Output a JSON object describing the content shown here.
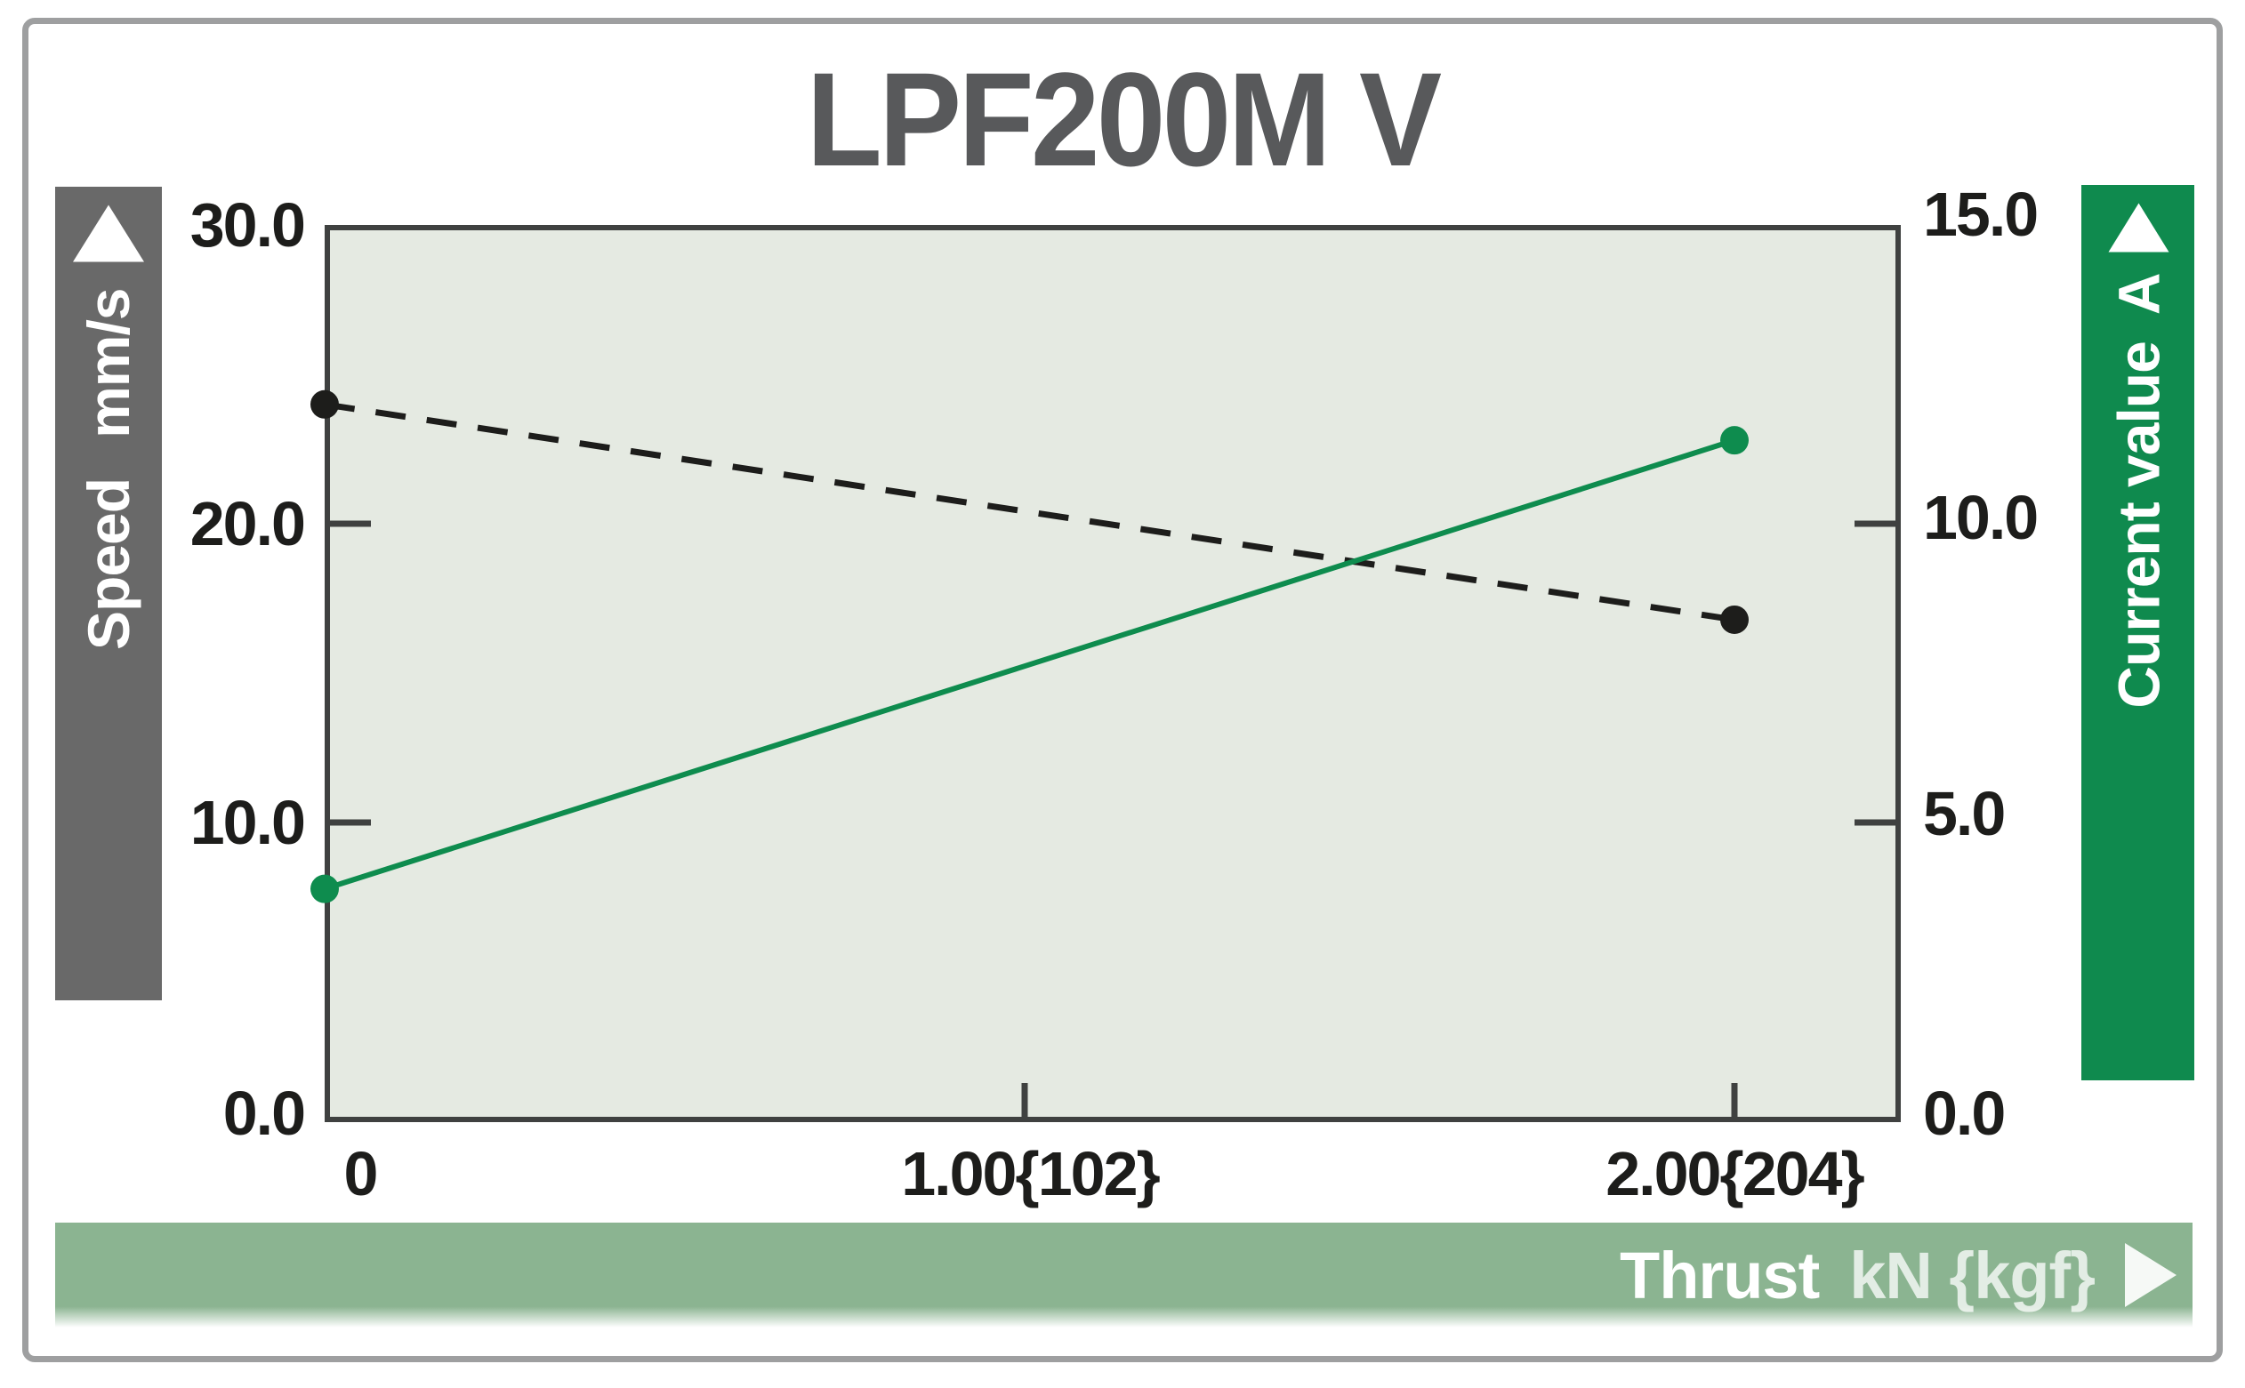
{
  "chart_data": {
    "type": "line",
    "title": "LPF200M V",
    "x_axis": {
      "label": "Thrust",
      "unit": "kN {kgf}",
      "tick_labels": [
        "0",
        "1.00{102}",
        "2.00{204}"
      ],
      "tick_values": [
        0,
        1.0,
        2.0
      ],
      "range": [
        0,
        2.24
      ]
    },
    "y_axis_left": {
      "label": "Speed",
      "unit": "mm/s",
      "tick_labels": [
        "30.0",
        "20.0",
        "10.0",
        "0.0"
      ],
      "range": [
        0,
        30
      ]
    },
    "y_axis_right": {
      "label": "Current value",
      "unit": "A",
      "tick_labels": [
        "15.0",
        "10.0",
        "5.0",
        "0.0"
      ],
      "range": [
        0,
        15
      ]
    },
    "series": [
      {
        "name": "Speed",
        "axis": "left",
        "line_style": "dashed",
        "color": "#1d1d1b",
        "x": [
          0,
          2.0
        ],
        "y": [
          24.0,
          16.8
        ]
      },
      {
        "name": "Current value",
        "axis": "right",
        "line_style": "solid",
        "color": "#0e8c4e",
        "x": [
          0,
          2.0
        ],
        "y": [
          3.9,
          11.4
        ]
      }
    ],
    "grid": false,
    "legend": "none",
    "plot_background": "#e5eae2",
    "accent_green": "#0f8a4e",
    "accent_gray": "#696969",
    "thrust_bar_color": "#8bb491"
  }
}
